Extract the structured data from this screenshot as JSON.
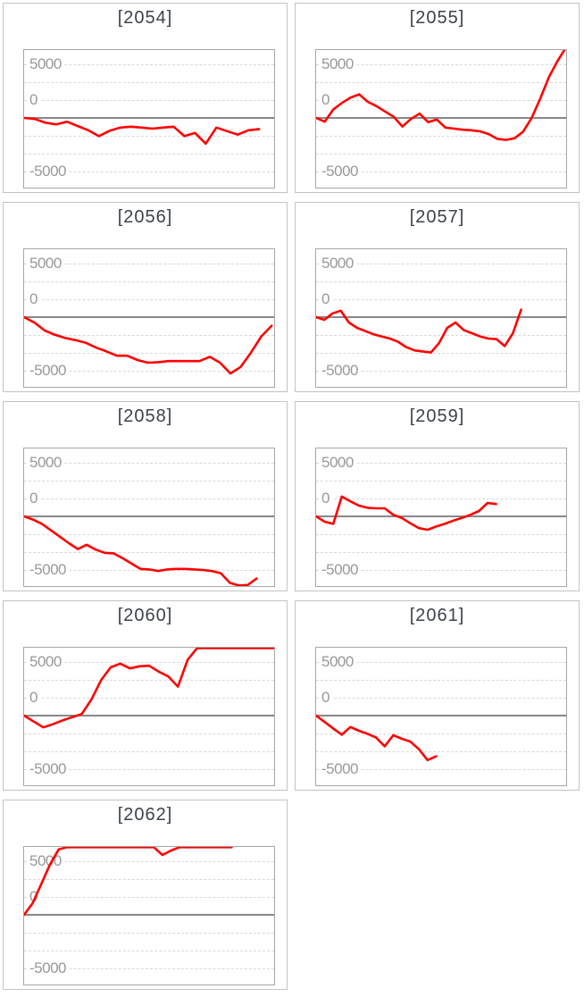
{
  "page": {
    "background": "#ffffff",
    "layout": "3x... grid of small multiple line charts, 2 columns, 9 charts"
  },
  "colors": {
    "series_line": "#ff0000",
    "zero_axis": "#878787",
    "minor_grid": "#d9d9d9",
    "plot_border": "#a6a6a6",
    "cell_border": "#c3c3c3",
    "tick_label": "#999999",
    "title_text": "#3c424c"
  },
  "axis": {
    "tick_labels": [
      "5000",
      "0",
      "-5000"
    ],
    "tick_values": [
      5000,
      0,
      -5000
    ],
    "ylim": [
      -6500,
      6450
    ],
    "grid": "dashed horizontal minor gridlines, solid gray zero baseline",
    "legend": "none",
    "x_axis": "unlabeled time axis, series starts at left edge at 0"
  },
  "chart_data": [
    {
      "type": "line",
      "title": "[2054]",
      "ylabel_ticks": [
        5000,
        0,
        -5000
      ],
      "x_end_fraction": 0.94,
      "values": [
        0,
        -100,
        -450,
        -600,
        -350,
        -750,
        -1150,
        -1700,
        -1200,
        -900,
        -820,
        -900,
        -1000,
        -900,
        -820,
        -1700,
        -1400,
        -2400,
        -900,
        -1230,
        -1560,
        -1150,
        -1050
      ]
    },
    {
      "type": "line",
      "title": "[2055]",
      "ylabel_ticks": [
        5000,
        0,
        -5000
      ],
      "x_end_fraction": 1.0,
      "values": [
        0,
        -350,
        800,
        1400,
        1900,
        2200,
        1500,
        1100,
        600,
        100,
        -800,
        -100,
        400,
        -400,
        -150,
        -900,
        -1000,
        -1100,
        -1150,
        -1250,
        -1500,
        -1950,
        -2050,
        -1900,
        -1300,
        0,
        1800,
        3800,
        5300,
        6600
      ]
    },
    {
      "type": "line",
      "title": "[2056]",
      "ylabel_ticks": [
        5000,
        0,
        -5000
      ],
      "x_end_fraction": 0.99,
      "values": [
        0,
        -500,
        -1250,
        -1650,
        -1950,
        -2150,
        -2400,
        -2850,
        -3200,
        -3600,
        -3600,
        -4000,
        -4250,
        -4200,
        -4100,
        -4100,
        -4100,
        -4100,
        -3700,
        -4250,
        -5250,
        -4650,
        -3300,
        -1800,
        -800
      ]
    },
    {
      "type": "line",
      "title": "[2057]",
      "ylabel_ticks": [
        5000,
        0,
        -5000
      ],
      "x_end_fraction": 0.82,
      "values": [
        0,
        -250,
        350,
        600,
        -500,
        -1000,
        -1300,
        -1600,
        -1800,
        -2000,
        -2300,
        -2800,
        -3100,
        -3200,
        -3300,
        -2400,
        -1000,
        -500,
        -1200,
        -1500,
        -1800,
        -2000,
        -2050,
        -2700,
        -1500,
        700
      ]
    },
    {
      "type": "line",
      "title": "[2058]",
      "ylabel_ticks": [
        5000,
        0,
        -5000
      ],
      "x_end_fraction": 0.93,
      "values": [
        0,
        -300,
        -700,
        -1300,
        -1900,
        -2500,
        -3050,
        -2650,
        -3100,
        -3400,
        -3450,
        -3900,
        -4400,
        -4900,
        -4950,
        -5100,
        -4950,
        -4900,
        -4900,
        -4950,
        -5000,
        -5100,
        -5300,
        -6200,
        -6450,
        -6400,
        -5800
      ]
    },
    {
      "type": "line",
      "title": "[2059]",
      "ylabel_ticks": [
        5000,
        0,
        -5000
      ],
      "x_end_fraction": 0.72,
      "values": [
        0,
        -500,
        -700,
        1850,
        1400,
        1000,
        800,
        750,
        750,
        150,
        -150,
        -650,
        -1100,
        -1250,
        -950,
        -700,
        -400,
        -150,
        150,
        500,
        1250,
        1150
      ]
    },
    {
      "type": "line",
      "title": "[2060]",
      "ylabel_ticks": [
        5000,
        0,
        -5000
      ],
      "x_end_fraction": 1.0,
      "values": [
        0,
        -550,
        -1100,
        -800,
        -450,
        -150,
        150,
        1500,
        3300,
        4500,
        4850,
        4400,
        4600,
        4650,
        4100,
        3650,
        2700,
        5200,
        6300,
        6300,
        6300,
        6300,
        6300,
        6300,
        6300,
        6300,
        6300
      ]
    },
    {
      "type": "line",
      "title": "[2061]",
      "ylabel_ticks": [
        5000,
        0,
        -5000
      ],
      "x_end_fraction": 0.48,
      "values": [
        0,
        -600,
        -1200,
        -1780,
        -1070,
        -1420,
        -1700,
        -2050,
        -2870,
        -1830,
        -2160,
        -2430,
        -3140,
        -4150,
        -3800
      ]
    },
    {
      "type": "line",
      "title": "[2062]",
      "ylabel_ticks": [
        5000,
        0,
        -5000
      ],
      "x_end_fraction": 0.83,
      "values": [
        0,
        1100,
        2900,
        4700,
        6100,
        6310,
        6310,
        6310,
        6310,
        6310,
        6310,
        6310,
        6310,
        6310,
        6310,
        6310,
        5580,
        6000,
        6310,
        6310,
        6310,
        6310,
        6310,
        6310,
        6310
      ]
    }
  ]
}
